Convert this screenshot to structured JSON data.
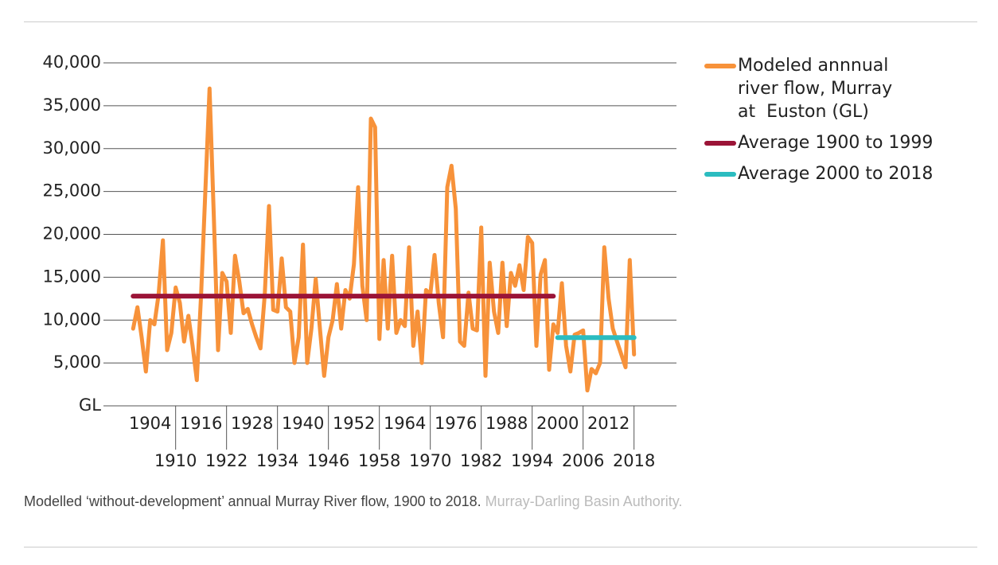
{
  "chart_data": {
    "type": "line",
    "caption": "Modelled ‘without-development’ annual Murray River flow, 1900 to 2018.",
    "source": "Murray-Darling Basin Authority.",
    "series": [
      {
        "name": "Modeled annnual river flow, Murray at  Euston (GL)",
        "color": "#f7923a",
        "x": [
          1900,
          1901,
          1902,
          1903,
          1904,
          1905,
          1906,
          1907,
          1908,
          1909,
          1910,
          1911,
          1912,
          1913,
          1914,
          1915,
          1916,
          1917,
          1918,
          1919,
          1920,
          1921,
          1922,
          1923,
          1924,
          1925,
          1926,
          1927,
          1928,
          1929,
          1930,
          1931,
          1932,
          1933,
          1934,
          1935,
          1936,
          1937,
          1938,
          1939,
          1940,
          1941,
          1942,
          1943,
          1944,
          1945,
          1946,
          1947,
          1948,
          1949,
          1950,
          1951,
          1952,
          1953,
          1954,
          1955,
          1956,
          1957,
          1958,
          1959,
          1960,
          1961,
          1962,
          1963,
          1964,
          1965,
          1966,
          1967,
          1968,
          1969,
          1970,
          1971,
          1972,
          1973,
          1974,
          1975,
          1976,
          1977,
          1978,
          1979,
          1980,
          1981,
          1982,
          1983,
          1984,
          1985,
          1986,
          1987,
          1988,
          1989,
          1990,
          1991,
          1992,
          1993,
          1994,
          1995,
          1996,
          1997,
          1998,
          1999,
          2000,
          2001,
          2002,
          2003,
          2004,
          2005,
          2006,
          2007,
          2008,
          2009,
          2010,
          2011,
          2012,
          2013,
          2014,
          2015,
          2016,
          2017,
          2018
        ],
        "values": [
          9000,
          11500,
          8000,
          4000,
          10000,
          9500,
          13000,
          19300,
          6500,
          8500,
          13800,
          12000,
          7500,
          10500,
          7000,
          3000,
          13000,
          25000,
          37000,
          22000,
          6500,
          15500,
          14500,
          8500,
          17500,
          14500,
          10800,
          11300,
          9500,
          8000,
          6700,
          13000,
          23300,
          11200,
          11000,
          17200,
          11500,
          11000,
          5000,
          8000,
          18800,
          5000,
          9000,
          14800,
          9000,
          3500,
          8000,
          10000,
          14200,
          9000,
          13500,
          12500,
          16500,
          25500,
          14000,
          10000,
          33500,
          32500,
          7800,
          17000,
          9000,
          17500,
          8500,
          10000,
          9300,
          18500,
          7000,
          11000,
          5000,
          13500,
          13000,
          17600,
          12000,
          8000,
          25500,
          28000,
          23000,
          7500,
          7000,
          13200,
          9000,
          8800,
          20800,
          3500,
          16700,
          11000,
          8500,
          16700,
          9300,
          15500,
          14000,
          16400,
          13500,
          19700,
          19000,
          7000,
          15300,
          17000,
          4200,
          9500,
          8500,
          14300,
          7000,
          4000,
          8300,
          8500,
          8800,
          1800,
          4300,
          3800,
          5000,
          18500,
          12500,
          9000,
          7500,
          6000,
          4500,
          17000,
          6000
        ]
      },
      {
        "name": "Average 1900 to 1999",
        "color": "#9b1437",
        "x": [
          1900,
          1999
        ],
        "values": [
          12800,
          12800
        ]
      },
      {
        "name": "Average 2000 to 2018",
        "color": "#2bbcc0",
        "x": [
          2000,
          2018
        ],
        "values": [
          7950,
          7950
        ]
      }
    ],
    "xlim": [
      1893,
      2028
    ],
    "xticks": [
      1904,
      1910,
      1916,
      1922,
      1928,
      1934,
      1940,
      1946,
      1952,
      1958,
      1964,
      1970,
      1976,
      1982,
      1988,
      1994,
      2000,
      2006,
      2012,
      2018
    ],
    "ylim": [
      0,
      40000
    ],
    "yticks": [
      {
        "value": 0,
        "label": "GL"
      },
      {
        "value": 5000,
        "label": "5,000"
      },
      {
        "value": 10000,
        "label": "10,000"
      },
      {
        "value": 15000,
        "label": "15,000"
      },
      {
        "value": 20000,
        "label": "20,000"
      },
      {
        "value": 25000,
        "label": "25,000"
      },
      {
        "value": 30000,
        "label": "30,000"
      },
      {
        "value": 35000,
        "label": "35,000"
      },
      {
        "value": 40000,
        "label": "40,000"
      }
    ],
    "grid": true,
    "legend": "right"
  }
}
